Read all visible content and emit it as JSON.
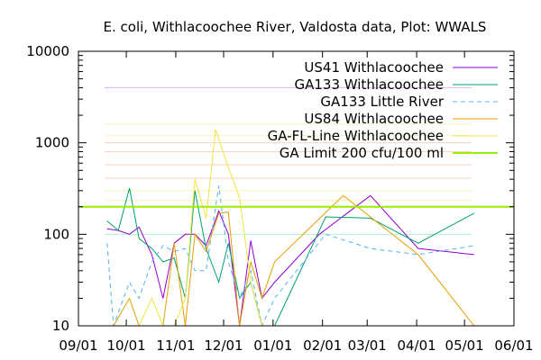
{
  "chart_data": {
    "type": "line",
    "title": "E. coli, Withlacoochee River, Valdosta data, Plot: WWALS",
    "xlabel": "",
    "ylabel": "",
    "y_scale": "log",
    "ylim": [
      10,
      10000
    ],
    "xlim": [
      "2017-09-01",
      "2018-06-01"
    ],
    "x_ticks": [
      "09/01",
      "10/01",
      "11/01",
      "12/01",
      "01/01",
      "02/01",
      "03/01",
      "04/01",
      "05/01",
      "06/01"
    ],
    "y_ticks": [
      "10",
      "100",
      "1000",
      "10000"
    ],
    "grid": false,
    "legend_position": "top-right",
    "series": [
      {
        "name": "US41 Withlacoochee",
        "color": "#9400d3",
        "dash": "solid",
        "points": [
          [
            "2017-09-19",
            115
          ],
          [
            "2017-09-26",
            110
          ],
          [
            "2017-10-03",
            100
          ],
          [
            "2017-10-09",
            120
          ],
          [
            "2017-10-17",
            60
          ],
          [
            "2017-10-24",
            20
          ],
          [
            "2017-10-31",
            80
          ],
          [
            "2017-11-07",
            100
          ],
          [
            "2017-11-13",
            100
          ],
          [
            "2017-11-20",
            75
          ],
          [
            "2017-11-28",
            180
          ],
          [
            "2017-12-04",
            100
          ],
          [
            "2017-12-11",
            10
          ],
          [
            "2017-12-18",
            85
          ],
          [
            "2017-12-25",
            20
          ],
          [
            "2018-01-02",
            30
          ],
          [
            "2018-01-30",
            100
          ],
          [
            "2018-03-03",
            265
          ],
          [
            "2018-04-02",
            70
          ],
          [
            "2018-05-07",
            60
          ]
        ]
      },
      {
        "name": "GA133 Withlacoochee",
        "color": "#009e73",
        "dash": "solid",
        "points": [
          [
            "2017-09-19",
            140
          ],
          [
            "2017-09-26",
            110
          ],
          [
            "2017-10-03",
            320
          ],
          [
            "2017-10-09",
            90
          ],
          [
            "2017-10-17",
            70
          ],
          [
            "2017-10-24",
            50
          ],
          [
            "2017-10-31",
            55
          ],
          [
            "2017-11-07",
            20
          ],
          [
            "2017-11-13",
            300
          ],
          [
            "2017-11-20",
            70
          ],
          [
            "2017-11-28",
            30
          ],
          [
            "2017-12-04",
            80
          ],
          [
            "2017-12-11",
            20
          ],
          [
            "2017-12-18",
            30
          ],
          [
            "2017-12-25",
            10
          ],
          [
            "2018-01-02",
            10
          ],
          [
            "2018-02-03",
            155
          ],
          [
            "2018-03-03",
            150
          ],
          [
            "2018-04-02",
            80
          ],
          [
            "2018-05-07",
            170
          ]
        ]
      },
      {
        "name": "GA133 Little River",
        "color": "#56b4e9",
        "dash": "dashed",
        "points": [
          [
            "2017-09-19",
            80
          ],
          [
            "2017-09-23",
            10
          ],
          [
            "2017-10-03",
            30
          ],
          [
            "2017-10-09",
            20
          ],
          [
            "2017-10-17",
            50
          ],
          [
            "2017-10-24",
            75
          ],
          [
            "2017-10-31",
            65
          ],
          [
            "2017-11-07",
            70
          ],
          [
            "2017-11-13",
            40
          ],
          [
            "2017-11-20",
            40
          ],
          [
            "2017-11-28",
            340
          ],
          [
            "2017-12-04",
            50
          ],
          [
            "2017-12-11",
            20
          ],
          [
            "2017-12-18",
            40
          ],
          [
            "2017-12-25",
            10
          ],
          [
            "2018-01-02",
            20
          ],
          [
            "2018-02-03",
            100
          ],
          [
            "2018-03-03",
            70
          ],
          [
            "2018-04-02",
            60
          ],
          [
            "2018-05-07",
            75
          ]
        ]
      },
      {
        "name": "US84 Withlacoochee",
        "color": "#e69f00",
        "dash": "solid",
        "points": [
          [
            "2017-09-23",
            10
          ],
          [
            "2017-10-03",
            20
          ],
          [
            "2017-10-09",
            10
          ],
          [
            "2017-10-17",
            10
          ],
          [
            "2017-10-24",
            10
          ],
          [
            "2017-10-31",
            80
          ],
          [
            "2017-11-07",
            10
          ],
          [
            "2017-11-13",
            100
          ],
          [
            "2017-11-20",
            65
          ],
          [
            "2017-11-28",
            170
          ],
          [
            "2017-12-04",
            175
          ],
          [
            "2017-12-11",
            10
          ],
          [
            "2017-12-18",
            50
          ],
          [
            "2017-12-25",
            20
          ],
          [
            "2018-01-02",
            50
          ],
          [
            "2018-02-14",
            265
          ],
          [
            "2018-04-02",
            60
          ],
          [
            "2018-05-07",
            10
          ]
        ]
      },
      {
        "name": "GA-FL-Line Withlacoochee",
        "color": "#f0e442",
        "dash": "solid",
        "points": [
          [
            "2017-10-03",
            10
          ],
          [
            "2017-10-09",
            10
          ],
          [
            "2017-10-17",
            20
          ],
          [
            "2017-10-24",
            10
          ],
          [
            "2017-10-31",
            10
          ],
          [
            "2017-11-07",
            20
          ],
          [
            "2017-11-13",
            400
          ],
          [
            "2017-11-20",
            150
          ],
          [
            "2017-11-26",
            1400
          ],
          [
            "2017-12-03",
            600
          ],
          [
            "2017-12-11",
            250
          ],
          [
            "2017-12-18",
            30
          ],
          [
            "2017-12-25",
            10
          ]
        ]
      },
      {
        "name": "GA Limit 200 cfu/100 ml",
        "color": "#99ee00",
        "dash": "solid",
        "width": 2,
        "points": [
          [
            "2017-09-01",
            200
          ],
          [
            "2018-06-01",
            200
          ]
        ]
      }
    ],
    "reference_bands": [
      {
        "color": "#e9b3ff",
        "values": [
          4000
        ]
      },
      {
        "color": "#fbd3bf",
        "values": [
          1000,
          800,
          575,
          410
        ]
      },
      {
        "color": "#f7f4b0",
        "values": [
          1600,
          1200,
          300,
          235
        ]
      },
      {
        "color": "#b5f0d0",
        "values": [
          100
        ]
      }
    ]
  }
}
